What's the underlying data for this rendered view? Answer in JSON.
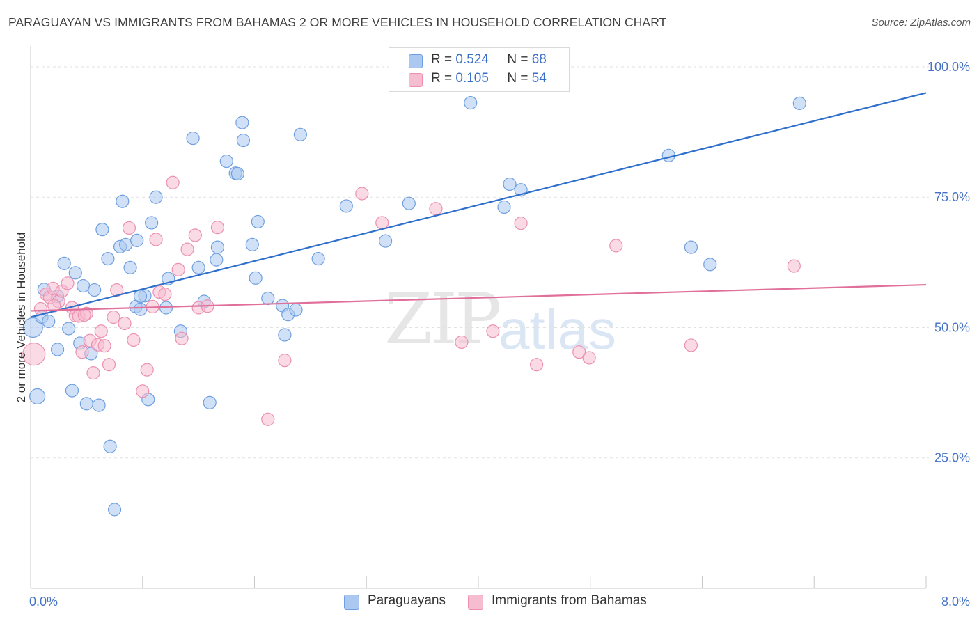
{
  "title": "PARAGUAYAN VS IMMIGRANTS FROM BAHAMAS 2 OR MORE VEHICLES IN HOUSEHOLD CORRELATION CHART",
  "source": "Source: ZipAtlas.com",
  "watermark": {
    "zip": "ZIP",
    "atlas": "atlas"
  },
  "legend": {
    "rows": [
      {
        "r_label": "R =",
        "r_value": "0.524",
        "n_label": "N =",
        "n_value": "68",
        "color": "#aac8f0"
      },
      {
        "r_label": "R =",
        "r_value": "0.105",
        "n_label": "N =",
        "n_value": "54",
        "color": "#f6bccf"
      }
    ]
  },
  "bottom_legend": [
    {
      "label": "Paraguayans",
      "color": "#aac8f0"
    },
    {
      "label": "Immigrants from Bahamas",
      "color": "#f6bccf"
    }
  ],
  "chart_data": {
    "type": "scatter",
    "title": "PARAGUAYAN VS IMMIGRANTS FROM BAHAMAS 2 OR MORE VEHICLES IN HOUSEHOLD CORRELATION CHART",
    "xlabel": "",
    "ylabel": "2 or more Vehicles in Household",
    "xlim": [
      0,
      8
    ],
    "ylim": [
      0,
      104
    ],
    "x_tick_labels": [
      {
        "value": 0,
        "label": "0.0%"
      },
      {
        "value": 8,
        "label": "8.0%"
      }
    ],
    "y_tick_labels": [
      {
        "value": 25,
        "label": "25.0%"
      },
      {
        "value": 50,
        "label": "50.0%"
      },
      {
        "value": 75,
        "label": "75.0%"
      },
      {
        "value": 100,
        "label": "100.0%"
      }
    ],
    "grid": true,
    "legend_position": "top-center",
    "series": [
      {
        "name": "Paraguayans",
        "color": "#6f9fe0",
        "fill": "#aac8f0",
        "trend": {
          "x": [
            0,
            8
          ],
          "y": [
            52.0,
            95.0
          ],
          "color": "#2f6fcc"
        },
        "points": [
          {
            "x": 0.02,
            "y": 50.0,
            "s": 14
          },
          {
            "x": 0.06,
            "y": 36.8,
            "s": 11
          },
          {
            "x": 0.1,
            "y": 52.0,
            "s": 9
          },
          {
            "x": 0.12,
            "y": 57.3,
            "s": 9
          },
          {
            "x": 0.16,
            "y": 51.2,
            "s": 9
          },
          {
            "x": 0.24,
            "y": 56.0,
            "s": 9
          },
          {
            "x": 0.24,
            "y": 45.8,
            "s": 9
          },
          {
            "x": 0.3,
            "y": 62.3,
            "s": 9
          },
          {
            "x": 0.34,
            "y": 49.8,
            "s": 9
          },
          {
            "x": 0.37,
            "y": 37.9,
            "s": 9
          },
          {
            "x": 0.4,
            "y": 60.5,
            "s": 9
          },
          {
            "x": 0.44,
            "y": 47.0,
            "s": 9
          },
          {
            "x": 0.47,
            "y": 58.0,
            "s": 9
          },
          {
            "x": 0.5,
            "y": 35.4,
            "s": 9
          },
          {
            "x": 0.54,
            "y": 45.0,
            "s": 9
          },
          {
            "x": 0.57,
            "y": 57.2,
            "s": 9
          },
          {
            "x": 0.61,
            "y": 35.1,
            "s": 9
          },
          {
            "x": 0.64,
            "y": 68.8,
            "s": 9
          },
          {
            "x": 0.69,
            "y": 63.2,
            "s": 9
          },
          {
            "x": 0.71,
            "y": 27.2,
            "s": 9
          },
          {
            "x": 0.75,
            "y": 15.1,
            "s": 9
          },
          {
            "x": 0.8,
            "y": 65.5,
            "s": 9
          },
          {
            "x": 0.82,
            "y": 74.2,
            "s": 9
          },
          {
            "x": 0.85,
            "y": 65.9,
            "s": 9
          },
          {
            "x": 0.89,
            "y": 61.5,
            "s": 9
          },
          {
            "x": 0.94,
            "y": 54.0,
            "s": 9
          },
          {
            "x": 0.95,
            "y": 66.7,
            "s": 9
          },
          {
            "x": 0.98,
            "y": 53.5,
            "s": 9
          },
          {
            "x": 1.02,
            "y": 56.1,
            "s": 9
          },
          {
            "x": 1.05,
            "y": 36.2,
            "s": 9
          },
          {
            "x": 1.08,
            "y": 70.1,
            "s": 9
          },
          {
            "x": 1.12,
            "y": 75.0,
            "s": 9
          },
          {
            "x": 1.21,
            "y": 53.8,
            "s": 9
          },
          {
            "x": 1.23,
            "y": 59.4,
            "s": 9
          },
          {
            "x": 1.34,
            "y": 49.3,
            "s": 9
          },
          {
            "x": 1.45,
            "y": 86.3,
            "s": 9
          },
          {
            "x": 1.5,
            "y": 61.5,
            "s": 9
          },
          {
            "x": 1.55,
            "y": 55.0,
            "s": 9
          },
          {
            "x": 1.6,
            "y": 35.6,
            "s": 9
          },
          {
            "x": 1.66,
            "y": 63.0,
            "s": 9
          },
          {
            "x": 1.67,
            "y": 65.4,
            "s": 9
          },
          {
            "x": 1.75,
            "y": 81.9,
            "s": 9
          },
          {
            "x": 1.83,
            "y": 79.6,
            "s": 9
          },
          {
            "x": 1.85,
            "y": 79.5,
            "s": 9
          },
          {
            "x": 1.89,
            "y": 89.3,
            "s": 9
          },
          {
            "x": 1.9,
            "y": 85.9,
            "s": 9
          },
          {
            "x": 1.98,
            "y": 65.9,
            "s": 9
          },
          {
            "x": 2.01,
            "y": 59.5,
            "s": 9
          },
          {
            "x": 2.03,
            "y": 70.3,
            "s": 9
          },
          {
            "x": 2.12,
            "y": 55.6,
            "s": 9
          },
          {
            "x": 2.25,
            "y": 54.2,
            "s": 9
          },
          {
            "x": 2.27,
            "y": 48.6,
            "s": 9
          },
          {
            "x": 2.3,
            "y": 52.5,
            "s": 9
          },
          {
            "x": 2.37,
            "y": 53.4,
            "s": 9
          },
          {
            "x": 2.41,
            "y": 87.0,
            "s": 9
          },
          {
            "x": 2.57,
            "y": 63.2,
            "s": 9
          },
          {
            "x": 2.82,
            "y": 73.3,
            "s": 9
          },
          {
            "x": 3.17,
            "y": 66.6,
            "s": 9
          },
          {
            "x": 3.38,
            "y": 73.8,
            "s": 9
          },
          {
            "x": 3.93,
            "y": 93.1,
            "s": 9
          },
          {
            "x": 4.23,
            "y": 73.1,
            "s": 9
          },
          {
            "x": 4.28,
            "y": 77.5,
            "s": 9
          },
          {
            "x": 4.38,
            "y": 76.4,
            "s": 9
          },
          {
            "x": 5.7,
            "y": 83.0,
            "s": 9
          },
          {
            "x": 5.9,
            "y": 65.4,
            "s": 9
          },
          {
            "x": 6.07,
            "y": 62.1,
            "s": 9
          },
          {
            "x": 6.87,
            "y": 93.0,
            "s": 9
          },
          {
            "x": 0.98,
            "y": 56.0,
            "s": 9
          }
        ]
      },
      {
        "name": "Immigrants from Bahamas",
        "color": "#ec8fb0",
        "fill": "#f6bccf",
        "trend": {
          "x": [
            0,
            8
          ],
          "y": [
            53.2,
            58.2
          ],
          "color": "#e0709a"
        },
        "points": [
          {
            "x": 0.03,
            "y": 44.9,
            "s": 16
          },
          {
            "x": 0.09,
            "y": 53.6,
            "s": 9
          },
          {
            "x": 0.14,
            "y": 56.4,
            "s": 9
          },
          {
            "x": 0.17,
            "y": 55.8,
            "s": 9
          },
          {
            "x": 0.2,
            "y": 57.5,
            "s": 9
          },
          {
            "x": 0.25,
            "y": 55.0,
            "s": 9
          },
          {
            "x": 0.28,
            "y": 57.0,
            "s": 9
          },
          {
            "x": 0.33,
            "y": 58.5,
            "s": 9
          },
          {
            "x": 0.37,
            "y": 53.8,
            "s": 9
          },
          {
            "x": 0.4,
            "y": 52.3,
            "s": 9
          },
          {
            "x": 0.43,
            "y": 52.2,
            "s": 9
          },
          {
            "x": 0.46,
            "y": 45.3,
            "s": 9
          },
          {
            "x": 0.5,
            "y": 52.7,
            "s": 9
          },
          {
            "x": 0.53,
            "y": 47.5,
            "s": 9
          },
          {
            "x": 0.56,
            "y": 41.3,
            "s": 9
          },
          {
            "x": 0.6,
            "y": 46.7,
            "s": 9
          },
          {
            "x": 0.63,
            "y": 49.3,
            "s": 9
          },
          {
            "x": 0.66,
            "y": 46.5,
            "s": 9
          },
          {
            "x": 0.7,
            "y": 42.9,
            "s": 9
          },
          {
            "x": 0.74,
            "y": 52.0,
            "s": 9
          },
          {
            "x": 0.77,
            "y": 57.2,
            "s": 9
          },
          {
            "x": 0.84,
            "y": 50.8,
            "s": 9
          },
          {
            "x": 0.88,
            "y": 69.1,
            "s": 9
          },
          {
            "x": 0.92,
            "y": 47.6,
            "s": 9
          },
          {
            "x": 1.0,
            "y": 37.8,
            "s": 9
          },
          {
            "x": 1.04,
            "y": 41.9,
            "s": 9
          },
          {
            "x": 1.09,
            "y": 54.0,
            "s": 9
          },
          {
            "x": 1.12,
            "y": 66.9,
            "s": 9
          },
          {
            "x": 1.15,
            "y": 56.8,
            "s": 9
          },
          {
            "x": 1.2,
            "y": 56.4,
            "s": 9
          },
          {
            "x": 1.27,
            "y": 77.8,
            "s": 9
          },
          {
            "x": 1.32,
            "y": 61.1,
            "s": 9
          },
          {
            "x": 1.35,
            "y": 47.9,
            "s": 9
          },
          {
            "x": 1.4,
            "y": 65.0,
            "s": 9
          },
          {
            "x": 1.47,
            "y": 67.7,
            "s": 9
          },
          {
            "x": 1.5,
            "y": 53.8,
            "s": 9
          },
          {
            "x": 1.58,
            "y": 54.1,
            "s": 9
          },
          {
            "x": 1.67,
            "y": 69.2,
            "s": 9
          },
          {
            "x": 2.12,
            "y": 32.4,
            "s": 9
          },
          {
            "x": 2.27,
            "y": 43.7,
            "s": 9
          },
          {
            "x": 2.96,
            "y": 75.7,
            "s": 9
          },
          {
            "x": 3.14,
            "y": 70.1,
            "s": 9
          },
          {
            "x": 3.62,
            "y": 72.8,
            "s": 9
          },
          {
            "x": 3.85,
            "y": 47.2,
            "s": 9
          },
          {
            "x": 4.13,
            "y": 49.3,
            "s": 9
          },
          {
            "x": 4.38,
            "y": 70.0,
            "s": 9
          },
          {
            "x": 4.52,
            "y": 42.9,
            "s": 9
          },
          {
            "x": 4.9,
            "y": 45.3,
            "s": 9
          },
          {
            "x": 4.99,
            "y": 44.2,
            "s": 9
          },
          {
            "x": 5.23,
            "y": 65.7,
            "s": 9
          },
          {
            "x": 5.9,
            "y": 46.6,
            "s": 9
          },
          {
            "x": 6.82,
            "y": 61.8,
            "s": 9
          },
          {
            "x": 0.48,
            "y": 52.4,
            "s": 9
          },
          {
            "x": 0.21,
            "y": 54.2,
            "s": 9
          }
        ]
      }
    ]
  }
}
